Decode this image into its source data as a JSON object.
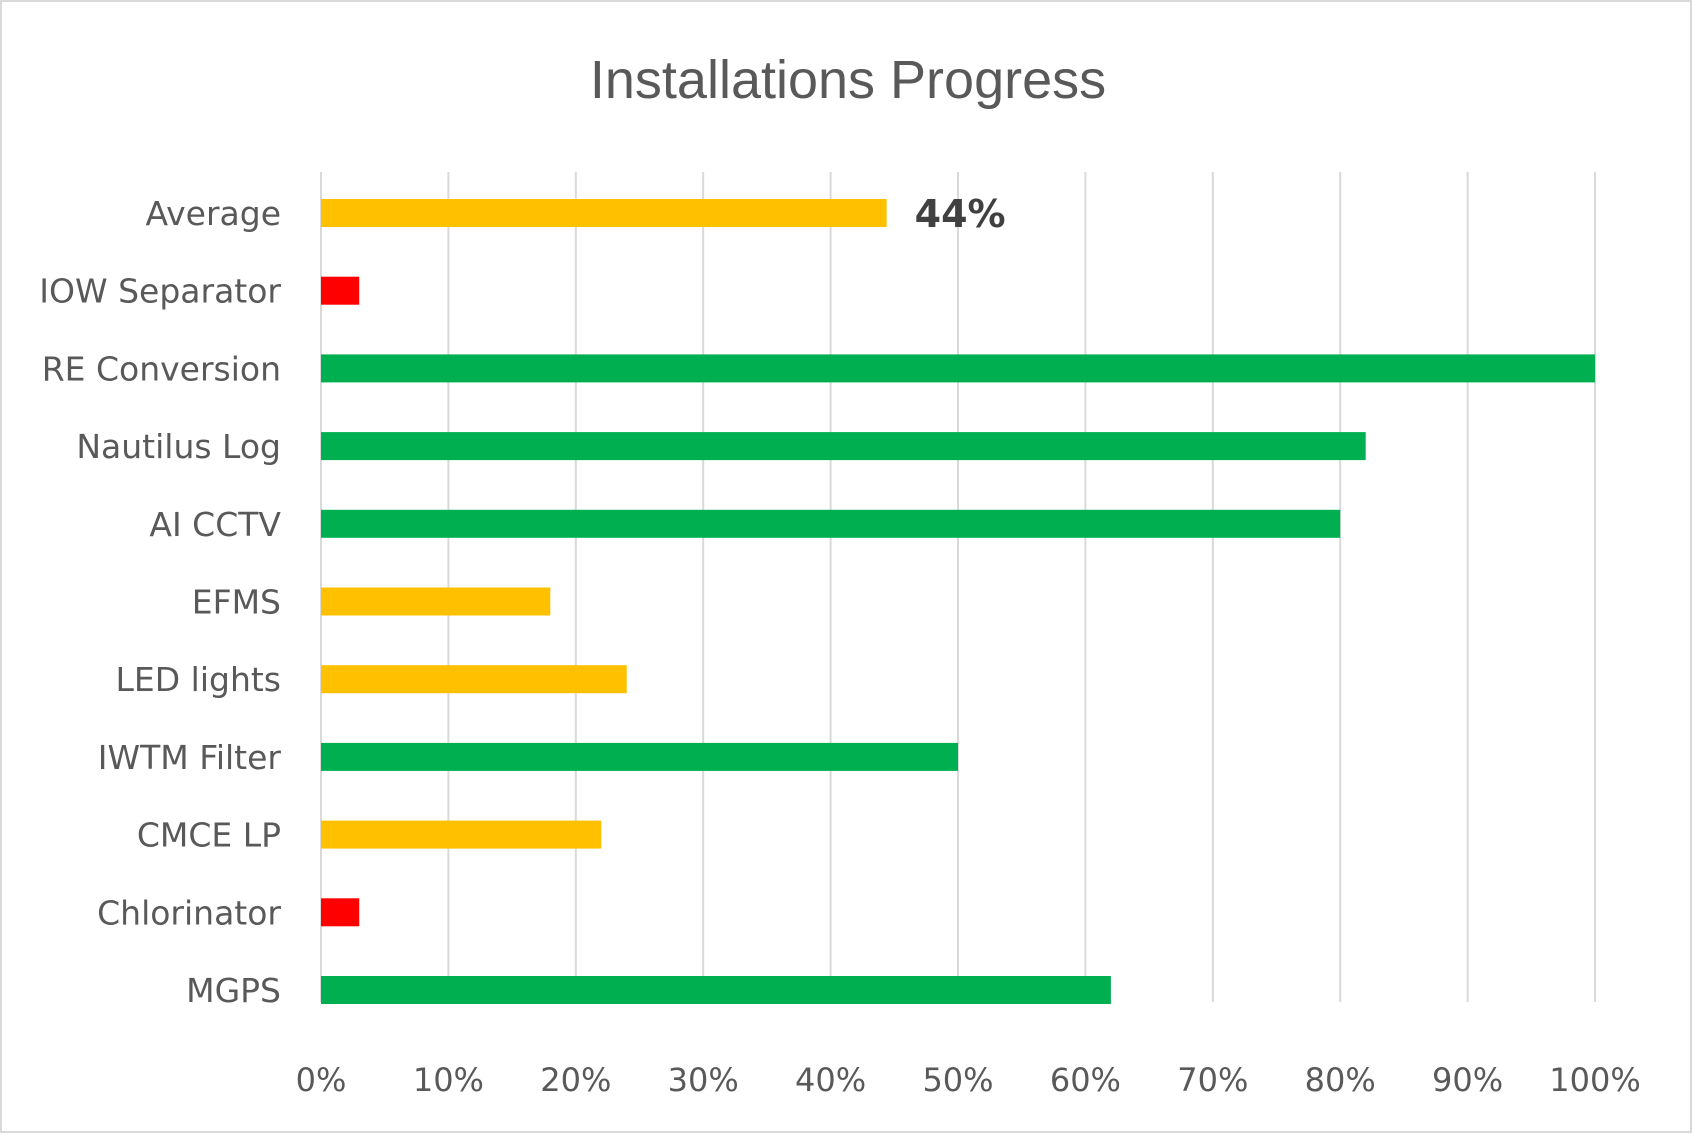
{
  "chart_data": {
    "type": "bar",
    "orientation": "horizontal",
    "title": "Installations Progress",
    "xlabel": "",
    "ylabel": "",
    "xlim": [
      0,
      100
    ],
    "grid": true,
    "legend": "none",
    "tick_labels": [
      "0%",
      "10%",
      "20%",
      "30%",
      "40%",
      "50%",
      "60%",
      "70%",
      "80%",
      "90%",
      "100%"
    ],
    "categories": [
      "Average",
      "IOW Separator",
      "RE Conversion",
      "Nautilus Log",
      "AI CCTV",
      "EFMS",
      "LED lights",
      "IWTM Filter",
      "CMCE LP",
      "Chlorinator",
      "MGPS"
    ],
    "values": [
      44.4,
      3,
      100,
      82,
      80,
      18,
      24,
      50,
      22,
      3,
      62
    ],
    "bar_colors": [
      "#ffc000",
      "#ff0000",
      "#00b050",
      "#00b050",
      "#00b050",
      "#ffc000",
      "#ffc000",
      "#00b050",
      "#ffc000",
      "#ff0000",
      "#00b050"
    ],
    "data_labels": [
      {
        "category": "Average",
        "text": "44%"
      }
    ]
  }
}
